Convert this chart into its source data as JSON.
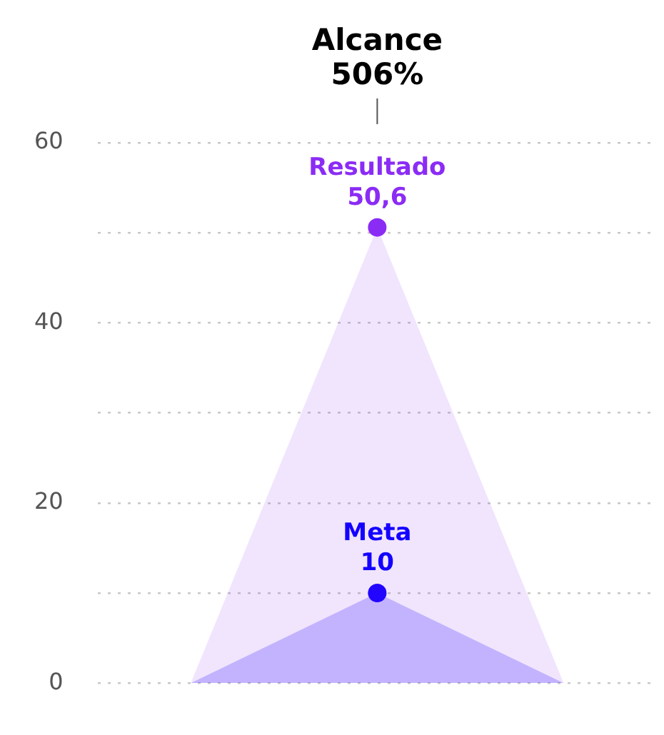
{
  "chart_data": {
    "type": "area",
    "categories": [
      null,
      null,
      null
    ],
    "ylim": [
      0,
      60
    ],
    "yticks": [
      0,
      {
        "value": 10,
        "label": null
      },
      20,
      {
        "value": 30,
        "label": null
      },
      40,
      {
        "value": 50,
        "label": null
      },
      60
    ],
    "grid": "y",
    "legend": false,
    "series": [
      {
        "name": "Resultado",
        "color": "#8b2cf5",
        "values": [
          0,
          50.6,
          0
        ],
        "value_labels": [
          null,
          "50,6",
          null
        ]
      },
      {
        "name": "Meta",
        "color": "#1400ff",
        "values": [
          0,
          10,
          0
        ],
        "value_labels": [
          null,
          "10",
          null
        ]
      }
    ],
    "annotations": [
      "Alcance 506%"
    ]
  }
}
